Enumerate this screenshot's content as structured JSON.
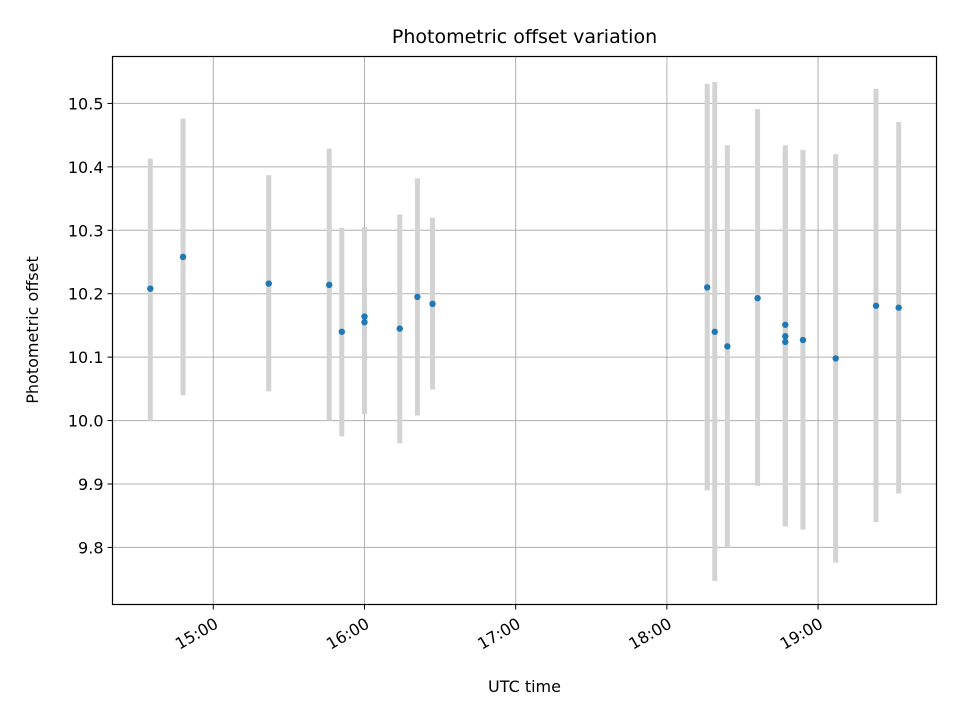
{
  "chart_data": {
    "type": "scatter",
    "title": "Photometric offset variation",
    "xlabel": "UTC time",
    "ylabel": "Photometric offset",
    "x_unit": "minutes after 00:00 UTC",
    "xlim": [
      "14:20",
      "19:47"
    ],
    "ylim": [
      9.71,
      10.574
    ],
    "grid": true,
    "colors": {
      "point": "#1f77b4",
      "errorbar": "#d3d3d3"
    },
    "x_ticks": [
      {
        "t": "15:00",
        "label": "15:00"
      },
      {
        "t": "16:00",
        "label": "16:00"
      },
      {
        "t": "17:00",
        "label": "17:00"
      },
      {
        "t": "18:00",
        "label": "18:00"
      },
      {
        "t": "19:00",
        "label": "19:00"
      }
    ],
    "y_ticks": [
      {
        "v": 9.8,
        "label": "9.8"
      },
      {
        "v": 9.9,
        "label": "9.9"
      },
      {
        "v": 10.0,
        "label": "10.0"
      },
      {
        "v": 10.1,
        "label": "10.1"
      },
      {
        "v": 10.2,
        "label": "10.2"
      },
      {
        "v": 10.3,
        "label": "10.3"
      },
      {
        "v": 10.4,
        "label": "10.4"
      },
      {
        "v": 10.5,
        "label": "10.5"
      }
    ],
    "points": [
      {
        "t": "14:35",
        "y": 10.208,
        "ylow": 10.0,
        "yhigh": 10.413
      },
      {
        "t": "14:48",
        "y": 10.258,
        "ylow": 10.04,
        "yhigh": 10.476
      },
      {
        "t": "15:22",
        "y": 10.216,
        "ylow": 10.046,
        "yhigh": 10.387
      },
      {
        "t": "15:46",
        "y": 10.214,
        "ylow": 10.0,
        "yhigh": 10.429
      },
      {
        "t": "15:51",
        "y": 10.14,
        "ylow": 9.975,
        "yhigh": 10.304
      },
      {
        "t": "16:00",
        "y": 10.164,
        "ylow": 10.025,
        "yhigh": 10.305
      },
      {
        "t": "16:00",
        "y": 10.155,
        "ylow": 10.01,
        "yhigh": 10.3
      },
      {
        "t": "16:14",
        "y": 10.145,
        "ylow": 9.964,
        "yhigh": 10.325
      },
      {
        "t": "16:21",
        "y": 10.195,
        "ylow": 10.008,
        "yhigh": 10.382
      },
      {
        "t": "16:27",
        "y": 10.184,
        "ylow": 10.049,
        "yhigh": 10.32
      },
      {
        "t": "18:16",
        "y": 10.21,
        "ylow": 9.89,
        "yhigh": 10.531
      },
      {
        "t": "18:19",
        "y": 10.14,
        "ylow": 9.747,
        "yhigh": 10.534
      },
      {
        "t": "18:24",
        "y": 10.117,
        "ylow": 9.8,
        "yhigh": 10.434
      },
      {
        "t": "18:36",
        "y": 10.193,
        "ylow": 9.897,
        "yhigh": 10.491
      },
      {
        "t": "18:47",
        "y": 10.151,
        "ylow": 9.833,
        "yhigh": 10.434
      },
      {
        "t": "18:47",
        "y": 10.133,
        "ylow": 9.84,
        "yhigh": 10.425
      },
      {
        "t": "18:47",
        "y": 10.124,
        "ylow": 9.836,
        "yhigh": 10.413
      },
      {
        "t": "18:54",
        "y": 10.127,
        "ylow": 9.828,
        "yhigh": 10.427
      },
      {
        "t": "19:07",
        "y": 10.098,
        "ylow": 9.776,
        "yhigh": 10.42
      },
      {
        "t": "19:23",
        "y": 10.181,
        "ylow": 9.84,
        "yhigh": 10.523
      },
      {
        "t": "19:32",
        "y": 10.178,
        "ylow": 9.885,
        "yhigh": 10.471
      }
    ]
  }
}
